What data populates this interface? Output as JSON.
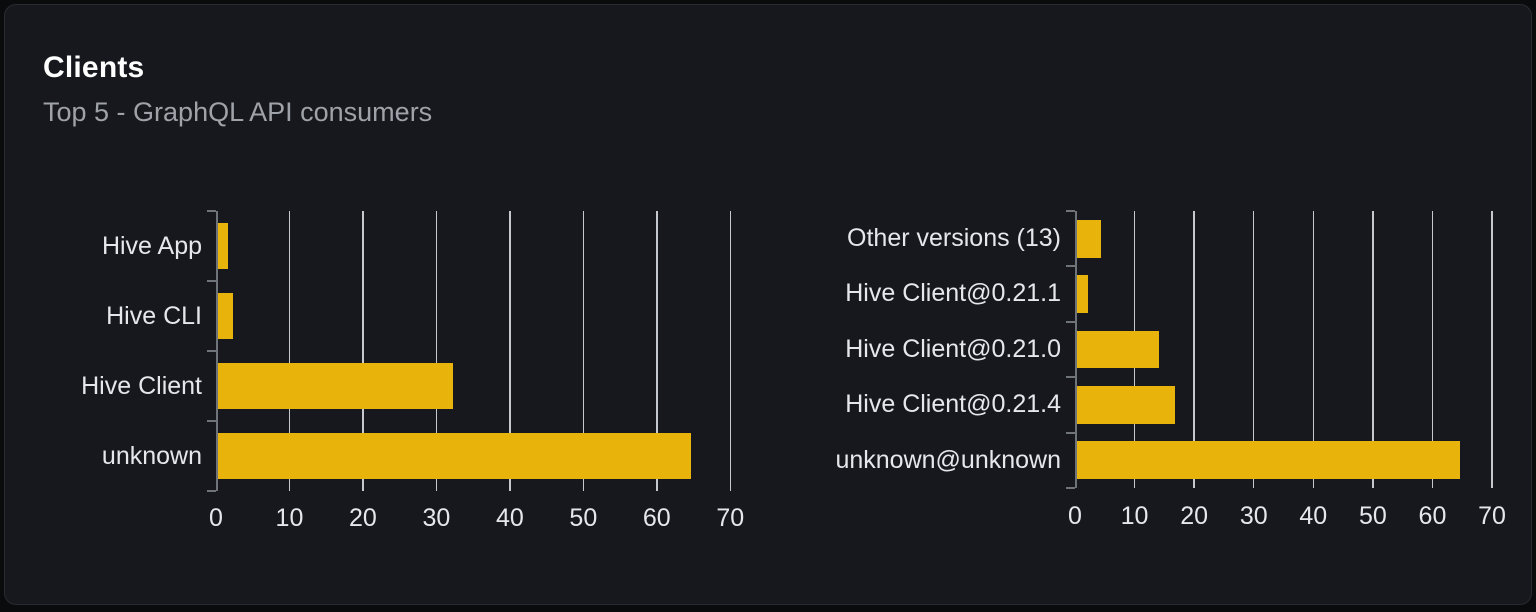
{
  "header": {
    "title": "Clients",
    "subtitle": "Top 5 - GraphQL API consumers"
  },
  "colors": {
    "bar": "#e8b30b",
    "page_background": "#0a0b0d",
    "card_background": "#16181d",
    "card_border": "#282b31",
    "gridline": "#d6d8e0",
    "axis": "#6f737a",
    "text_primary": "#ffffff",
    "text_secondary": "#9fa2a8",
    "label_text": "#e6e7ea"
  },
  "chart_data": [
    {
      "type": "bar",
      "orientation": "horizontal",
      "order": "top-to-bottom",
      "categories": [
        "Hive App",
        "Hive CLI",
        "Hive Client",
        "unknown"
      ],
      "values": [
        1.3,
        2,
        32,
        64.4
      ],
      "xticks": [
        0,
        10,
        20,
        30,
        40,
        50,
        60,
        70
      ],
      "xlim": [
        0,
        75
      ],
      "xlabel": "",
      "ylabel": "",
      "grid": true,
      "legend": false,
      "bar_color": "#e8b30b"
    },
    {
      "type": "bar",
      "orientation": "horizontal",
      "order": "top-to-bottom",
      "categories": [
        "Other versions (13)",
        "Hive Client@0.21.1",
        "Hive Client@0.21.0",
        "Hive Client@0.21.4",
        "unknown@unknown"
      ],
      "values": [
        4,
        1.8,
        13.8,
        16.4,
        64.3
      ],
      "xticks": [
        0,
        10,
        20,
        30,
        40,
        50,
        60,
        70
      ],
      "xlim": [
        0,
        71
      ],
      "xlabel": "",
      "ylabel": "",
      "grid": true,
      "legend": false,
      "bar_color": "#e8b30b"
    }
  ]
}
